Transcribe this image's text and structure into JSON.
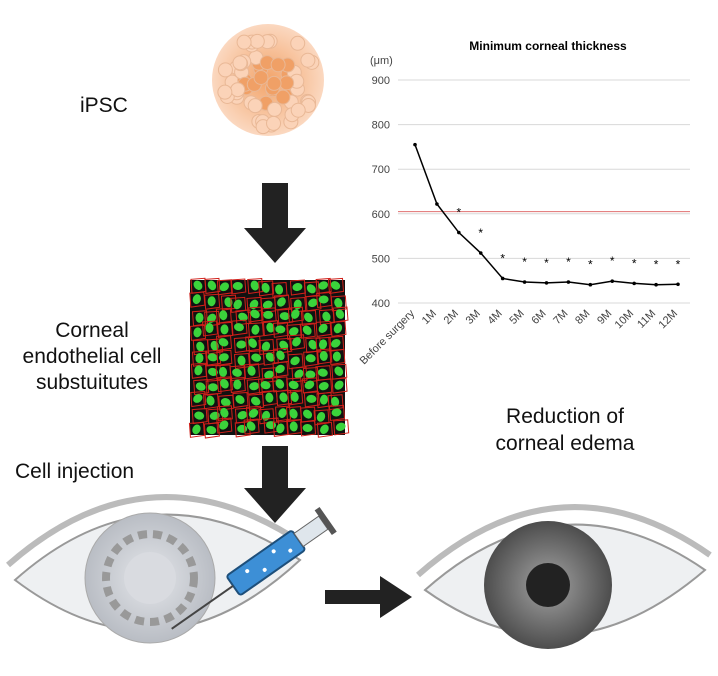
{
  "diagram": {
    "ipsc_label": "iPSC",
    "substitutes_label": [
      "Corneal",
      "endothelial cell",
      "substuitutes"
    ],
    "injection_label": "Cell injection",
    "result_label": [
      "Reduction of",
      "corneal edema"
    ]
  },
  "chart_data": {
    "type": "line",
    "title": "Minimum corneal thickness",
    "y_unit": "(μm)",
    "categories": [
      "Before surgery",
      "1M",
      "2M",
      "3M",
      "4M",
      "5M",
      "6M",
      "7M",
      "8M",
      "9M",
      "10M",
      "11M",
      "12M"
    ],
    "values": [
      755,
      622,
      558,
      512,
      455,
      447,
      445,
      447,
      441,
      449,
      444,
      441,
      442
    ],
    "significance": [
      null,
      null,
      "*",
      "*",
      "*",
      "*",
      "*",
      "*",
      "*",
      "*",
      "*",
      "*",
      "*"
    ],
    "color": "#000000",
    "reference_line": {
      "value": 605,
      "color": "#e07070"
    },
    "ylim": [
      400,
      900
    ],
    "yticks": [
      400,
      500,
      600,
      700,
      800,
      900
    ],
    "grid": true
  }
}
